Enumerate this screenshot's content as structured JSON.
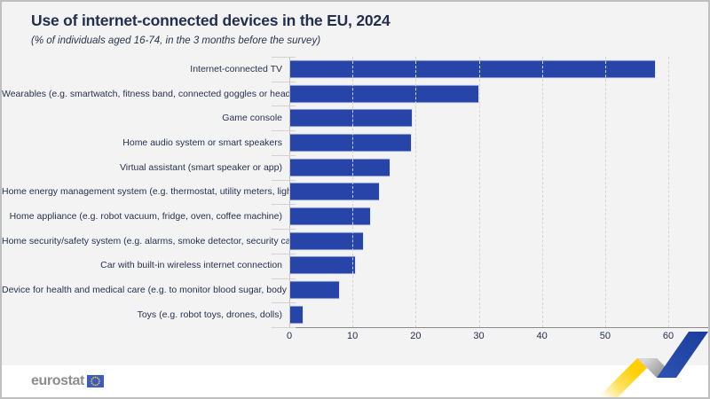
{
  "header": {
    "title": "Use of internet-connected devices in the EU, 2024",
    "subtitle": "(% of individuals aged 16-74, in the 3 months before the survey)"
  },
  "chart_data": {
    "type": "bar",
    "orientation": "horizontal",
    "title": "Use of internet-connected devices in the EU, 2024",
    "subtitle": "(% of individuals aged 16-74, in the 3 months before the survey)",
    "categories": [
      "Internet-connected TV",
      "Wearables (e.g. smartwatch, fitness band, connected goggles or headsets)",
      "Game console",
      "Home audio system or smart speakers",
      "Virtual assistant (smart speaker or app)",
      "Home energy management system (e.g. thermostat, utility meters, lights)",
      "Home appliance (e.g. robot vacuum, fridge, oven, coffee machine)",
      "Home security/safety system (e.g. alarms, smoke detector, security cameras)",
      "Car with built-in wireless internet connection",
      "Device for health and medical care (e.g. to monitor blood sugar, body weight)",
      "Toys (e.g. robot toys, drones, dolls)"
    ],
    "values": [
      58,
      30,
      19.6,
      19.4,
      16,
      14.3,
      12.9,
      11.8,
      10.5,
      8,
      2.3
    ],
    "xlabel": "",
    "ylabel": "",
    "xlim": [
      0,
      60
    ],
    "xticks": [
      "0",
      "10",
      "20",
      "30",
      "40",
      "50",
      "60"
    ],
    "grid": "vertical-dashed",
    "legend": "none",
    "bar_color": "#2745a9"
  },
  "footer": {
    "logo_text": "eurostat",
    "flag_icon": "eu-flag-icon",
    "decoration_icon": "trend-ribbon-icon"
  },
  "colors": {
    "accent_blue": "#2745a9",
    "text_navy": "#232f4e",
    "ribbon_yellow": "#ffcf00",
    "ribbon_blue": "#1f42a3",
    "background": "#f3f3f4"
  }
}
